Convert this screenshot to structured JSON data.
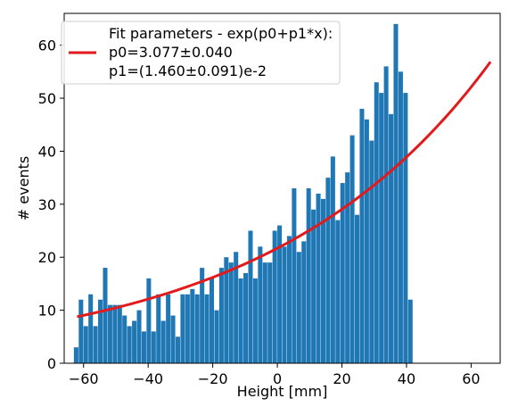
{
  "chart_data": {
    "type": "bar",
    "xlabel": "Height [mm]",
    "ylabel": "# events",
    "xlim": [
      -66,
      69
    ],
    "ylim": [
      0,
      66
    ],
    "grid": false,
    "legend_position": "top-left",
    "x_ticks": [
      -60,
      -40,
      -20,
      0,
      20,
      40,
      60
    ],
    "x_tick_labels": [
      "−60",
      "−40",
      "−20",
      "0",
      "20",
      "40",
      "60"
    ],
    "y_ticks": [
      0,
      10,
      20,
      30,
      40,
      50,
      60
    ],
    "y_tick_labels": [
      "0",
      "10",
      "20",
      "30",
      "40",
      "50",
      "60"
    ],
    "bin_start": -63,
    "bin_width": 1.5,
    "values": [
      3,
      12,
      7,
      13,
      7,
      12,
      18,
      11,
      11,
      11,
      9,
      7,
      8,
      10,
      6,
      16,
      6,
      13,
      8,
      13,
      9,
      5,
      13,
      13,
      14,
      13,
      18,
      13,
      16,
      10,
      18,
      20,
      19,
      21,
      16,
      17,
      25,
      16,
      22,
      19,
      19,
      25,
      26,
      22,
      24,
      33,
      21,
      23,
      33,
      29,
      32,
      31,
      35,
      39,
      27,
      34,
      36,
      43,
      28,
      48,
      46,
      42,
      53,
      51,
      56,
      47,
      64,
      55,
      51,
      12
    ],
    "fit": {
      "label": "Fit parameters - exp(p0+p1*x):",
      "p0_label": "p0=3.077±0.040",
      "p1_label": "p1=(1.460±0.091)e-2",
      "p0": 3.077,
      "p1": 0.0146,
      "x_range": [
        -62,
        66
      ]
    },
    "colors": {
      "bars": "#1f77b4",
      "fit_line": "#e31a1c"
    }
  }
}
